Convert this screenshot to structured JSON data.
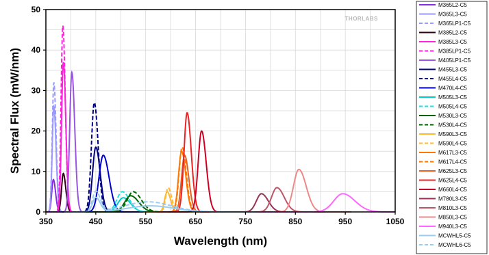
{
  "watermark": "THORLABS",
  "chart_data": {
    "type": "line",
    "title": "",
    "xlabel": "Wavelength (nm)",
    "ylabel": "Spectral Flux (mW/nm)",
    "xlim": [
      350,
      1050
    ],
    "ylim": [
      0,
      50
    ],
    "xticks": [
      350,
      450,
      550,
      650,
      750,
      850,
      950,
      1050
    ],
    "yticks": [
      0,
      10,
      20,
      30,
      40,
      50
    ],
    "grid": true,
    "legend_position": "right",
    "series": [
      {
        "name": "M365L2-C5",
        "color": "#8a2be2",
        "dash": false,
        "peak": 365,
        "amp": 8,
        "fwhm": 9
      },
      {
        "name": "M365L3-C5",
        "color": "#9999ff",
        "dash": false,
        "peak": 366,
        "amp": 26,
        "fwhm": 9
      },
      {
        "name": "M365LP1-C5",
        "color": "#9999ff",
        "dash": true,
        "peak": 366,
        "amp": 32,
        "fwhm": 9
      },
      {
        "name": "M385L2-C5",
        "color": "#330011",
        "dash": false,
        "peak": 385,
        "amp": 9.5,
        "fwhm": 10
      },
      {
        "name": "M385L3-C5",
        "color": "#ff22dd",
        "dash": false,
        "peak": 385,
        "amp": 37,
        "fwhm": 10
      },
      {
        "name": "M385LP1-C5",
        "color": "#ff22dd",
        "dash": true,
        "peak": 384,
        "amp": 46,
        "fwhm": 10
      },
      {
        "name": "M405LP1-C5",
        "color": "#9955dd",
        "dash": false,
        "peak": 402,
        "amp": 34.5,
        "fwhm": 12
      },
      {
        "name": "M455L3-C5",
        "color": "#000080",
        "dash": false,
        "peak": 450,
        "amp": 16,
        "fwhm": 18
      },
      {
        "name": "M455L4-C5",
        "color": "#000080",
        "dash": true,
        "peak": 447,
        "amp": 27,
        "fwhm": 16
      },
      {
        "name": "M470L4-C5",
        "color": "#0000cc",
        "dash": false,
        "peak": 465,
        "amp": 14,
        "fwhm": 24
      },
      {
        "name": "M505L3-C5",
        "color": "#00cccc",
        "dash": false,
        "peak": 505,
        "amp": 3.5,
        "fwhm": 30
      },
      {
        "name": "M505L4-C5",
        "color": "#22dddd",
        "dash": true,
        "peak": 503,
        "amp": 5,
        "fwhm": 30
      },
      {
        "name": "M530L3-C5",
        "color": "#006600",
        "dash": false,
        "peak": 520,
        "amp": 4,
        "fwhm": 33
      },
      {
        "name": "M530L4-C5",
        "color": "#006600",
        "dash": true,
        "peak": 525,
        "amp": 5,
        "fwhm": 33
      },
      {
        "name": "M590L3-C5",
        "color": "#ffb833",
        "dash": false,
        "peak": 593,
        "amp": 5,
        "fwhm": 14
      },
      {
        "name": "M590L4-C5",
        "color": "#ffb833",
        "dash": true,
        "peak": 595,
        "amp": 6,
        "fwhm": 14
      },
      {
        "name": "M617L3-C5",
        "color": "#ff7700",
        "dash": false,
        "peak": 622,
        "amp": 15,
        "fwhm": 17
      },
      {
        "name": "M617L4-C5",
        "color": "#ff7700",
        "dash": true,
        "peak": 623,
        "amp": 16,
        "fwhm": 17
      },
      {
        "name": "M625L3-C5",
        "color": "#e86020",
        "dash": false,
        "peak": 628,
        "amp": 14,
        "fwhm": 17
      },
      {
        "name": "M625L4-C5",
        "color": "#ee2222",
        "dash": false,
        "peak": 633,
        "amp": 24.5,
        "fwhm": 17
      },
      {
        "name": "M660L4-C5",
        "color": "#cc0022",
        "dash": false,
        "peak": 662,
        "amp": 20,
        "fwhm": 19
      },
      {
        "name": "M780L3-C5",
        "color": "#993355",
        "dash": false,
        "peak": 782,
        "amp": 4.5,
        "fwhm": 28
      },
      {
        "name": "M810L3-C5",
        "color": "#bb5566",
        "dash": false,
        "peak": 813,
        "amp": 6,
        "fwhm": 30
      },
      {
        "name": "M850L3-C5",
        "color": "#ee8888",
        "dash": false,
        "peak": 857,
        "amp": 10.5,
        "fwhm": 30
      },
      {
        "name": "M940L3-C5",
        "color": "#ff66ff",
        "dash": false,
        "peak": 945,
        "amp": 4.5,
        "fwhm": 50
      },
      {
        "name": "MCWHL5-C5",
        "color": "#99ccee",
        "dash": false,
        "peak": 450,
        "amp": 3.5,
        "fwhm": 18,
        "broad": [
          560,
          1.5,
          110
        ]
      },
      {
        "name": "MCWHL6-C5",
        "color": "#99ccee",
        "dash": true,
        "peak": 450,
        "amp": 5,
        "fwhm": 18,
        "broad": [
          555,
          2.5,
          110
        ]
      }
    ]
  }
}
